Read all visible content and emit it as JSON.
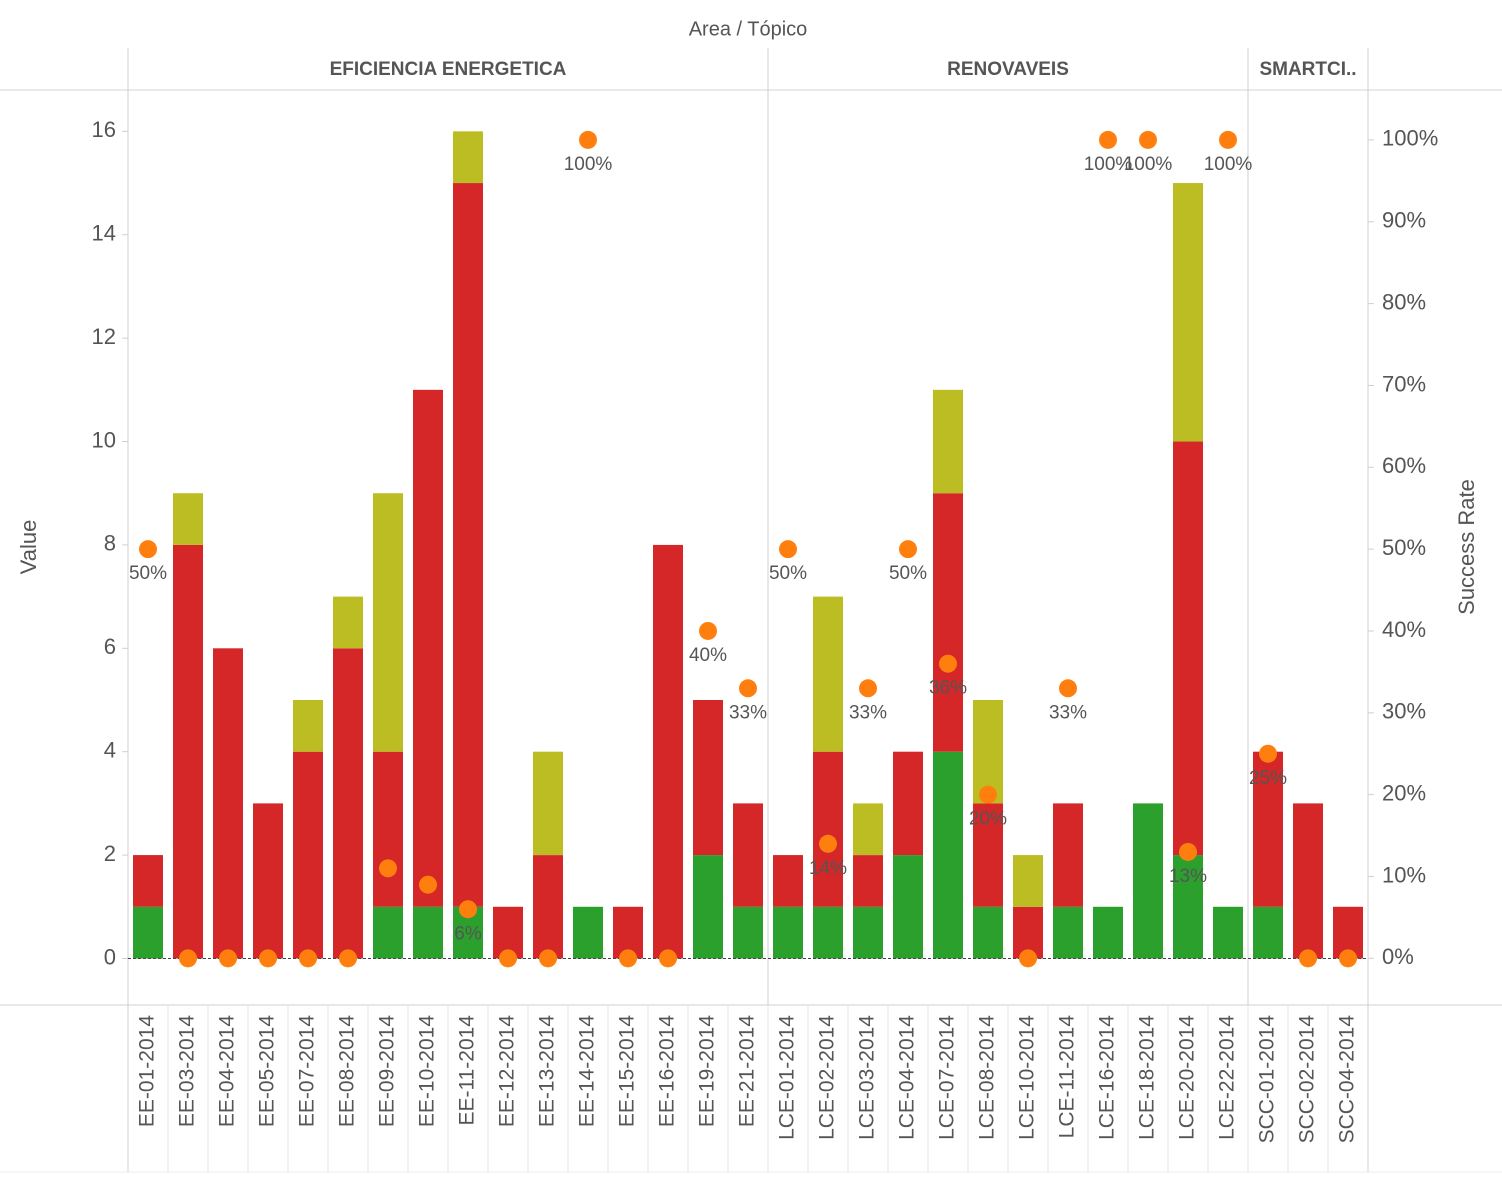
{
  "chart_data": {
    "type": "bar",
    "stacked": true,
    "header": "Area  /  Tópico",
    "y_label": "Value",
    "y2_label": "Success Rate",
    "panes": [
      {
        "name": "EFICIENCIA ENERGETICA",
        "categories": [
          "EE-01-2014",
          "EE-03-2014",
          "EE-04-2014",
          "EE-05-2014",
          "EE-07-2014",
          "EE-08-2014",
          "EE-09-2014",
          "EE-10-2014",
          "EE-11-2014",
          "EE-12-2014",
          "EE-13-2014",
          "EE-14-2014",
          "EE-15-2014",
          "EE-16-2014",
          "EE-19-2014",
          "EE-21-2014"
        ]
      },
      {
        "name": "RENOVAVEIS",
        "categories": [
          "LCE-01-2014",
          "LCE-02-2014",
          "LCE-03-2014",
          "LCE-04-2014",
          "LCE-07-2014",
          "LCE-08-2014",
          "LCE-10-2014",
          "LCE-11-2014",
          "LCE-16-2014",
          "LCE-18-2014",
          "LCE-20-2014",
          "LCE-22-2014"
        ]
      },
      {
        "name": "SMARTCI..",
        "categories": [
          "SCC-01-2014",
          "SCC-02-2014",
          "SCC-04-2014"
        ]
      }
    ],
    "series": [
      {
        "color": "#2ca02c",
        "values": [
          1,
          0,
          0,
          0,
          0,
          0,
          1,
          1,
          1,
          0,
          0,
          1,
          0,
          0,
          2,
          1,
          1,
          1,
          1,
          2,
          4,
          1,
          0,
          1,
          1,
          3,
          2,
          1,
          1,
          0,
          0
        ]
      },
      {
        "color": "#d62728",
        "values": [
          1,
          8,
          6,
          3,
          4,
          6,
          3,
          10,
          14,
          1,
          2,
          0,
          1,
          8,
          3,
          2,
          1,
          3,
          1,
          2,
          5,
          2,
          1,
          2,
          0,
          0,
          8,
          0,
          3,
          3,
          1
        ]
      },
      {
        "color": "#bcbd22",
        "values": [
          0,
          1,
          0,
          0,
          1,
          1,
          5,
          0,
          1,
          0,
          2,
          0,
          0,
          0,
          0,
          0,
          0,
          3,
          1,
          0,
          2,
          2,
          1,
          0,
          0,
          0,
          5,
          0,
          0,
          0,
          0
        ]
      }
    ],
    "rate": {
      "axis": "y2",
      "color": "#ff7f0e",
      "values": [
        50,
        0,
        0,
        0,
        0,
        0,
        11,
        9,
        6,
        0,
        0,
        100,
        0,
        0,
        40,
        33,
        50,
        14,
        33,
        50,
        36,
        20,
        0,
        33,
        100,
        100,
        13,
        100,
        25,
        0,
        0
      ],
      "value_labels": [
        "50%",
        null,
        null,
        null,
        null,
        null,
        null,
        null,
        "6%",
        null,
        null,
        "100%",
        null,
        null,
        "40%",
        "33%",
        "50%",
        "14%",
        "33%",
        "50%",
        "36%",
        "20%",
        null,
        "33%",
        "100%",
        "100%",
        "13%",
        "100%",
        "25%",
        null,
        null
      ]
    },
    "ylim": [
      -0.9,
      16.8
    ],
    "yticks": [
      0,
      2,
      4,
      6,
      8,
      10,
      12,
      14,
      16
    ],
    "y2lim": [
      -5.7,
      106.1
    ],
    "y2ticks": [
      {
        "value": 0,
        "label": "0%"
      },
      {
        "value": 10,
        "label": "10%"
      },
      {
        "value": 20,
        "label": "20%"
      },
      {
        "value": 30,
        "label": "30%"
      },
      {
        "value": 40,
        "label": "40%"
      },
      {
        "value": 50,
        "label": "50%"
      },
      {
        "value": 60,
        "label": "60%"
      },
      {
        "value": 70,
        "label": "70%"
      },
      {
        "value": 80,
        "label": "80%"
      },
      {
        "value": 90,
        "label": "90%"
      },
      {
        "value": 100,
        "label": "100%"
      }
    ]
  }
}
